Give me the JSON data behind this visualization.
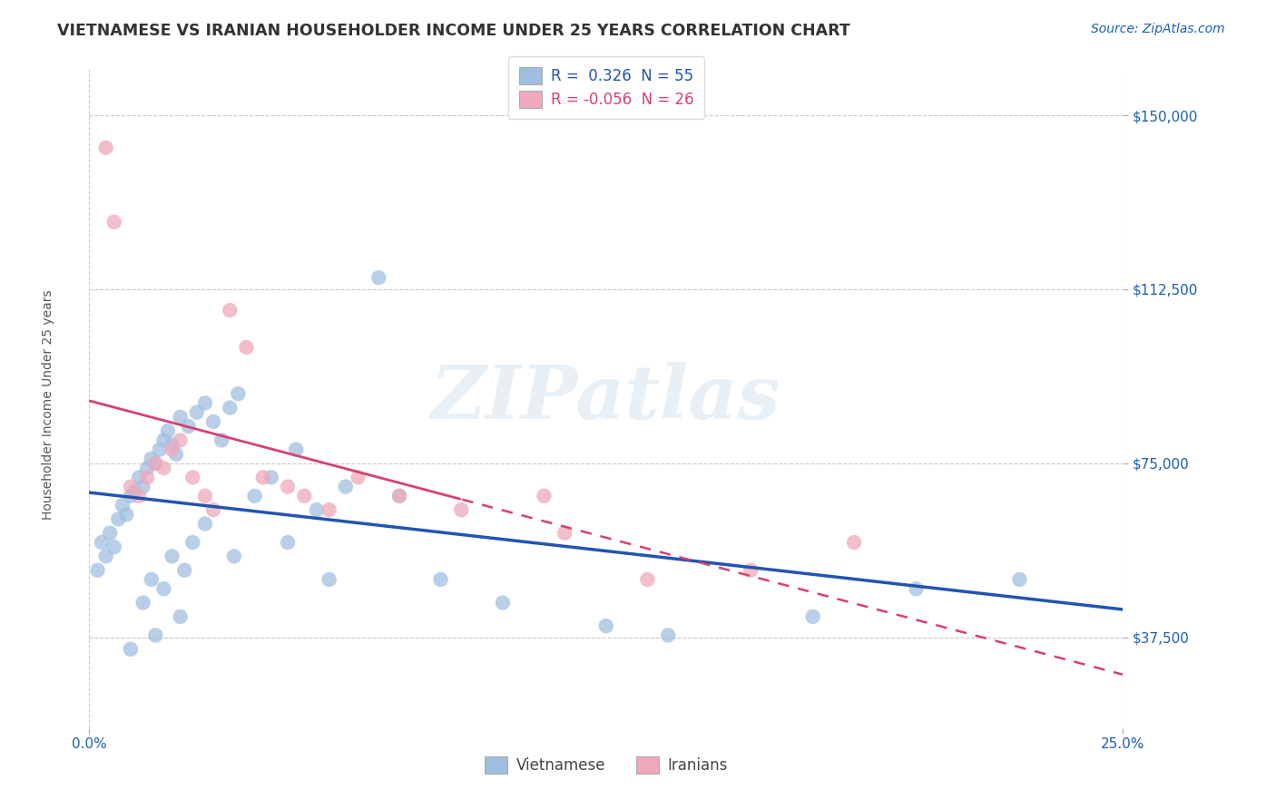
{
  "title": "VIETNAMESE VS IRANIAN HOUSEHOLDER INCOME UNDER 25 YEARS CORRELATION CHART",
  "source": "Source: ZipAtlas.com",
  "ylabel": "Householder Income Under 25 years",
  "xlim": [
    0.0,
    25.0
  ],
  "ylim": [
    18000,
    160000
  ],
  "yticks": [
    37500,
    75000,
    112500,
    150000
  ],
  "ytick_labels": [
    "$37,500",
    "$75,000",
    "$112,500",
    "$150,000"
  ],
  "background_color": "#ffffff",
  "grid_color": "#c8c8c8",
  "blue_scatter_color": "#a0bfe0",
  "pink_scatter_color": "#f0a8bc",
  "blue_line_color": "#2255b0",
  "pink_line_color": "#d84070",
  "pink_line_dashed_color": "#d84070",
  "title_color": "#333333",
  "source_color": "#1a5fb4",
  "axis_label_color": "#1a5fb4",
  "watermark": "ZIPatlas",
  "legend1_text": "R =  0.326  N = 55",
  "legend2_text": "R = -0.056  N = 26",
  "viet_x": [
    0.2,
    0.3,
    0.4,
    0.5,
    0.6,
    0.7,
    0.8,
    0.9,
    1.0,
    1.1,
    1.2,
    1.3,
    1.4,
    1.5,
    1.6,
    1.7,
    1.8,
    1.9,
    2.0,
    2.1,
    2.2,
    2.4,
    2.6,
    2.8,
    3.0,
    3.2,
    3.4,
    3.6,
    4.0,
    4.4,
    5.0,
    5.5,
    6.2,
    7.0,
    1.3,
    1.5,
    1.8,
    2.0,
    2.3,
    2.5,
    2.8,
    3.5,
    4.8,
    5.8,
    7.5,
    8.5,
    10.0,
    12.5,
    14.0,
    17.5,
    20.0,
    22.5,
    1.0,
    1.6,
    2.2
  ],
  "viet_y": [
    52000,
    58000,
    55000,
    60000,
    57000,
    63000,
    66000,
    64000,
    68000,
    69000,
    72000,
    70000,
    74000,
    76000,
    75000,
    78000,
    80000,
    82000,
    79000,
    77000,
    85000,
    83000,
    86000,
    88000,
    84000,
    80000,
    87000,
    90000,
    68000,
    72000,
    78000,
    65000,
    70000,
    115000,
    45000,
    50000,
    48000,
    55000,
    52000,
    58000,
    62000,
    55000,
    58000,
    50000,
    68000,
    50000,
    45000,
    40000,
    38000,
    42000,
    48000,
    50000,
    35000,
    38000,
    42000
  ],
  "iran_x": [
    0.4,
    0.6,
    1.0,
    1.2,
    1.4,
    1.6,
    1.8,
    2.0,
    2.2,
    2.5,
    2.8,
    3.0,
    3.4,
    3.8,
    4.2,
    4.8,
    5.2,
    5.8,
    6.5,
    7.5,
    9.0,
    11.0,
    13.5,
    16.0,
    18.5,
    11.5
  ],
  "iran_y": [
    143000,
    127000,
    70000,
    68000,
    72000,
    75000,
    74000,
    78000,
    80000,
    72000,
    68000,
    65000,
    108000,
    100000,
    72000,
    70000,
    68000,
    65000,
    72000,
    68000,
    65000,
    68000,
    50000,
    52000,
    58000,
    60000
  ],
  "iran_solid_x_max": 9.0
}
